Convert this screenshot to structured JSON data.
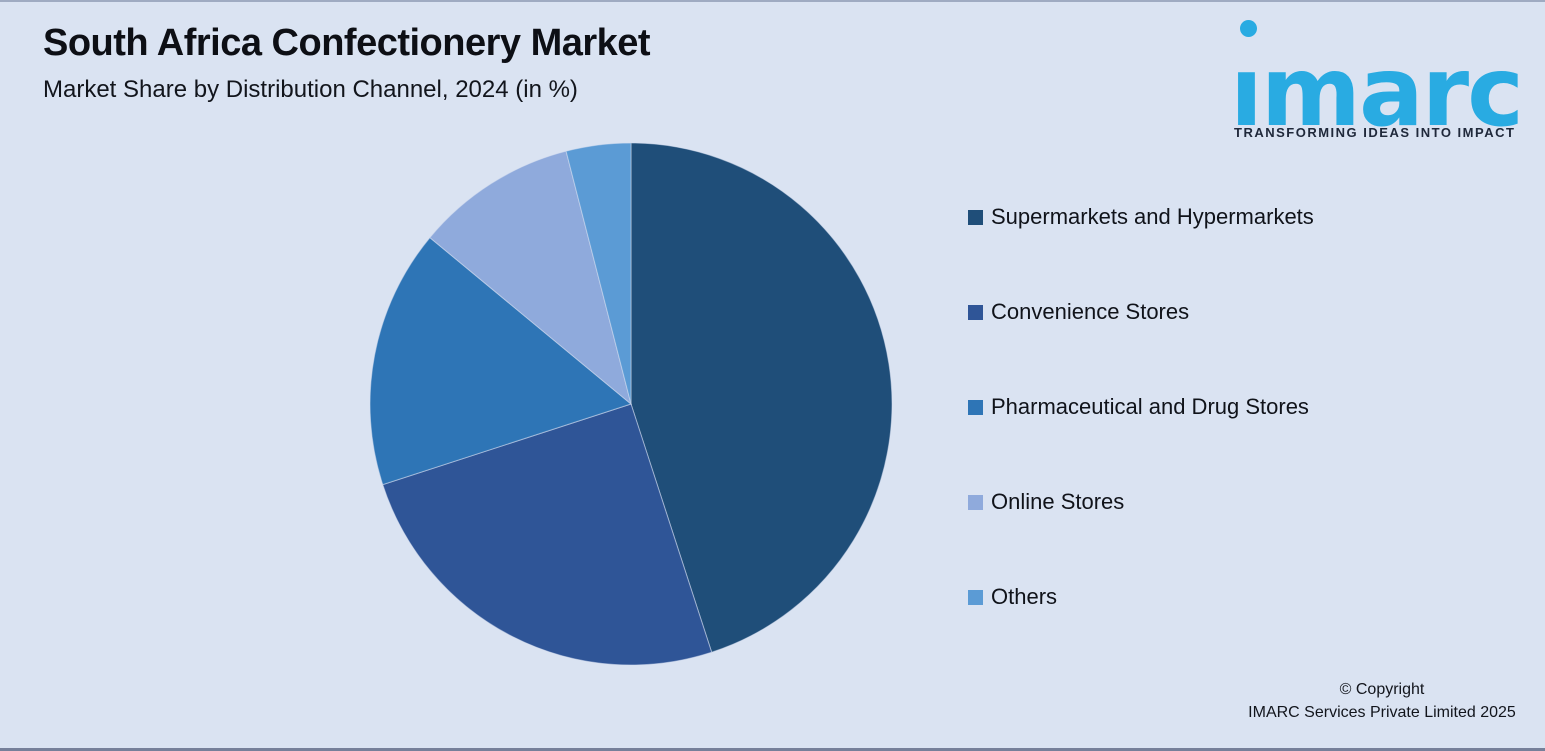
{
  "header": {
    "title": "South Africa Confectionery Market",
    "subtitle": "Market Share by Distribution Channel, 2024 (in %)"
  },
  "logo": {
    "wordmark": "ımarc",
    "tagline": "TRANSFORMING IDEAS INTO IMPACT",
    "brand_color": "#29ABE2"
  },
  "chart_data": {
    "type": "pie",
    "title": "South Africa Confectionery Market",
    "subtitle": "Market Share by Distribution Channel, 2024 (in %)",
    "unit": "%",
    "start_angle_deg": -90,
    "direction": "clockwise",
    "legend_position": "right",
    "slices": [
      {
        "label": "Supermarkets and Hypermarkets",
        "value": 45,
        "color": "#1F4E79"
      },
      {
        "label": "Convenience Stores",
        "value": 25,
        "color": "#2F5597"
      },
      {
        "label": "Pharmaceutical and Drug Stores",
        "value": 16,
        "color": "#2E75B6"
      },
      {
        "label": "Online Stores",
        "value": 10,
        "color": "#8FAADC"
      },
      {
        "label": "Others",
        "value": 4,
        "color": "#5B9BD5"
      }
    ]
  },
  "footer": {
    "copyright_line1": "© Copyright",
    "copyright_line2": "IMARC Services Private Limited 2025"
  }
}
